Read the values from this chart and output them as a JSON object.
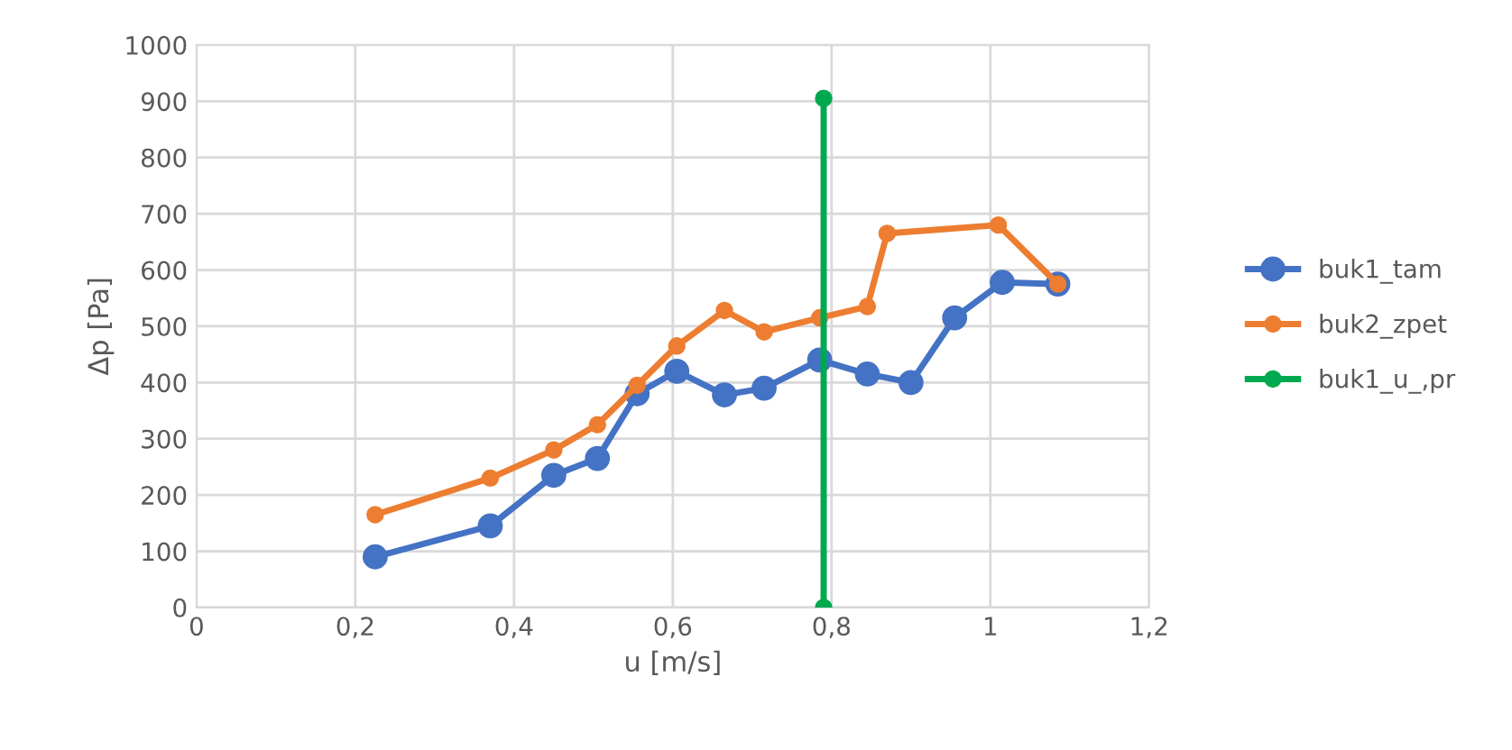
{
  "chart_data": {
    "type": "line",
    "xlabel": "u [m/s]",
    "ylabel": "Δp [Pa]",
    "xlim": [
      0,
      1.2
    ],
    "xticks": [
      {
        "value": 0,
        "label": "0"
      },
      {
        "value": 0.2,
        "label": "0,2"
      },
      {
        "value": 0.4,
        "label": "0,4"
      },
      {
        "value": 0.6,
        "label": "0,6"
      },
      {
        "value": 0.8,
        "label": "0,8"
      },
      {
        "value": 1,
        "label": "1"
      },
      {
        "value": 1.2,
        "label": "1,2"
      }
    ],
    "ylim": [
      0,
      1000
    ],
    "yticks": [
      0,
      100,
      200,
      300,
      400,
      500,
      600,
      700,
      800,
      900,
      1000
    ],
    "grid": true,
    "legend": "right",
    "marker": "circle",
    "series": [
      {
        "name": "buk1_tam",
        "color": "#4472c4",
        "x": [
          0.225,
          0.37,
          0.45,
          0.505,
          0.555,
          0.605,
          0.665,
          0.715,
          0.785,
          0.845,
          0.9,
          0.955,
          1.015,
          1.085
        ],
        "values": [
          90,
          145,
          235,
          265,
          380,
          420,
          378,
          390,
          440,
          415,
          400,
          515,
          578,
          575
        ]
      },
      {
        "name": "buk2_zpet",
        "color": "#ed7d31",
        "x": [
          0.225,
          0.37,
          0.45,
          0.505,
          0.555,
          0.605,
          0.665,
          0.715,
          0.785,
          0.845,
          0.87,
          1.01,
          1.085
        ],
        "values": [
          165,
          230,
          280,
          325,
          395,
          465,
          528,
          490,
          515,
          535,
          665,
          680,
          575
        ]
      },
      {
        "name": "buk1_u_,pr",
        "color": "#00a94f",
        "x": [
          0.79,
          0.79
        ],
        "values": [
          0,
          905
        ]
      }
    ]
  }
}
